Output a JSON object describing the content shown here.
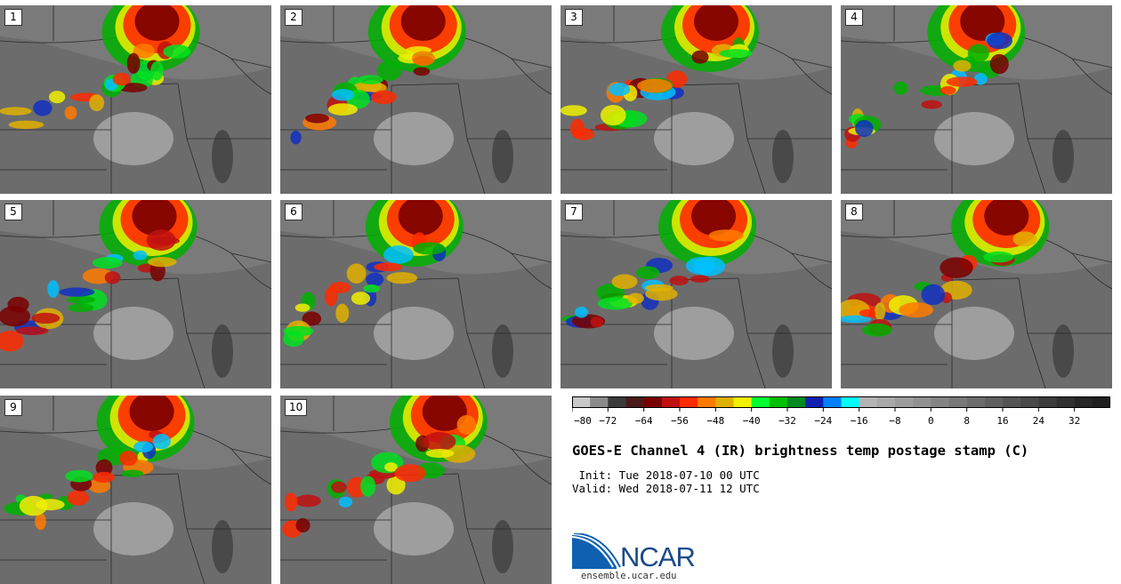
{
  "panels": [
    {
      "label": "1"
    },
    {
      "label": "2"
    },
    {
      "label": "3"
    },
    {
      "label": "4"
    },
    {
      "label": "5"
    },
    {
      "label": "6"
    },
    {
      "label": "7"
    },
    {
      "label": "8"
    },
    {
      "label": "9"
    },
    {
      "label": "10"
    }
  ],
  "colorbar": {
    "colors": [
      "#c8c8c8",
      "#8a8a8a",
      "#3a3a3a",
      "#4a1a1a",
      "#7a0000",
      "#c01010",
      "#ff2a00",
      "#ff7a00",
      "#e0b000",
      "#f0f000",
      "#00ff30",
      "#00c000",
      "#008a20",
      "#1020b0",
      "#0080ff",
      "#00ffff",
      "#b4b4b4",
      "#a8a8a8",
      "#9c9c9c",
      "#909090",
      "#848484",
      "#787878",
      "#6c6c6c",
      "#606060",
      "#545454",
      "#484848",
      "#3c3c3c",
      "#303030",
      "#262626",
      "#202020"
    ],
    "tick_labels": [
      "−80",
      "−72",
      "−64",
      "−56",
      "−48",
      "−40",
      "−32",
      "−24",
      "−16",
      "−8",
      "0",
      "8",
      "16",
      "24",
      "32"
    ],
    "min": -80,
    "max": 40,
    "tick_step": 8
  },
  "title": "GOES-E Channel 4 (IR) brightness temp postage stamp (C)",
  "init": " Init: Tue 2018-07-10 00 UTC",
  "valid": "Valid: Wed 2018-07-11 12 UTC",
  "logo_text": "NCAR",
  "website": "ensemble.ucar.edu"
}
